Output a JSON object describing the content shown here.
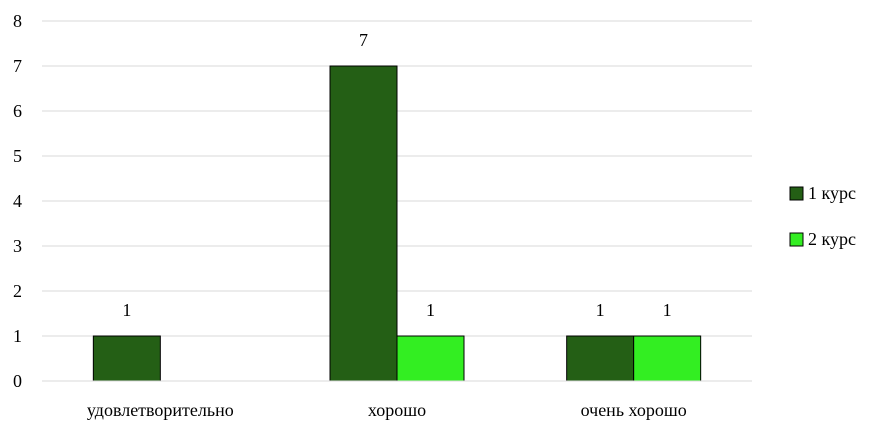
{
  "chart_data": {
    "type": "bar",
    "categories": [
      "удовлетворительно",
      "хорошо",
      "очень хорошо"
    ],
    "series": [
      {
        "name": "1 курс",
        "values": [
          1,
          7,
          1
        ],
        "color": "#245f15"
      },
      {
        "name": "2 курс",
        "values": [
          null,
          1,
          1
        ],
        "color": "#33ee22"
      }
    ],
    "ylim": [
      0,
      8
    ],
    "yticks": [
      0,
      1,
      2,
      3,
      4,
      5,
      6,
      7,
      8
    ],
    "grid": true,
    "legend": "right",
    "data_labels": true
  }
}
